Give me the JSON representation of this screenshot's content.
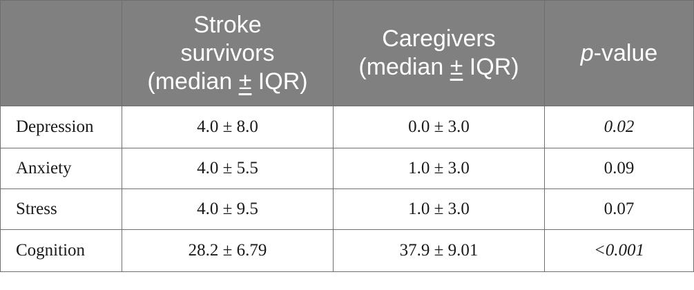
{
  "header": {
    "col0": "",
    "col1_line1": "Stroke",
    "col1_line2": "survivors",
    "col1_line3_pre": "(median ",
    "col1_line3_pm": "±",
    "col1_line3_post": " IQR)",
    "col2_line1": "Caregivers",
    "col2_line2_pre": "(median ",
    "col2_line2_pm": "±",
    "col2_line2_post": " IQR)",
    "col3_italic": "p",
    "col3_rest": "-value"
  },
  "rows": [
    {
      "label": "Depression",
      "survivors": "4.0 ± 8.0",
      "caregivers": "0.0 ± 3.0",
      "p_value": "0.02",
      "p_italic": true
    },
    {
      "label": "Anxiety",
      "survivors": "4.0 ± 5.5",
      "caregivers": "1.0 ± 3.0",
      "p_value": "0.09",
      "p_italic": false
    },
    {
      "label": "Stress",
      "survivors": "4.0 ± 9.5",
      "caregivers": "1.0 ± 3.0",
      "p_value": "0.07",
      "p_italic": false
    },
    {
      "label": "Cognition",
      "survivors": "28.2 ± 6.79",
      "caregivers": "37.9 ± 9.01",
      "p_value": "<0.001",
      "p_italic": true
    }
  ],
  "colors": {
    "header_bg": "#808080",
    "header_text": "#ffffff",
    "border": "#6e6e6e",
    "body_text": "#1a1a1a"
  }
}
